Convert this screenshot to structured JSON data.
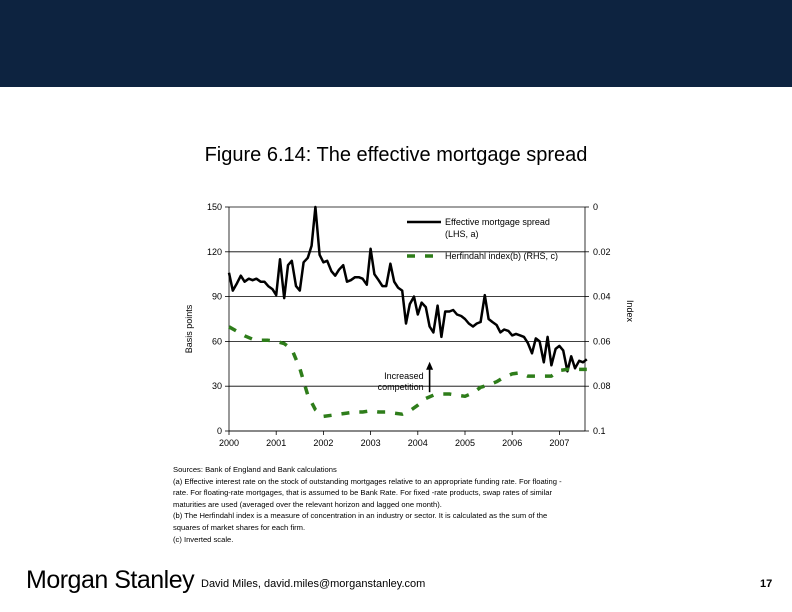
{
  "header": {
    "color": "#0d2340"
  },
  "figure_title": "Figure 6.14: The effective mortgage spread",
  "chart_data": {
    "type": "line",
    "xlabel": "",
    "ylabel": "Basis points",
    "y2label": "Index",
    "ylim": [
      0,
      150
    ],
    "y2lim": [
      0.1,
      0
    ],
    "y_ticks": [
      "0",
      "30",
      "60",
      "90",
      "120",
      "150"
    ],
    "y2_ticks": [
      "0.1",
      "0.08",
      "0.06",
      "0.04",
      "0.02",
      "0"
    ],
    "x_ticks": [
      "2000",
      "2001",
      "2002",
      "2003",
      "2004",
      "2005",
      "2006",
      "2007"
    ],
    "xlim": [
      2000,
      2007.75
    ],
    "grid": true,
    "legend_position": "top-right",
    "series": [
      {
        "name": "Effective mortgage spread (LHS, a)",
        "axis": "left",
        "style": "solid",
        "color": "#000000",
        "x": [
          2000.0,
          2000.08,
          2000.17,
          2000.25,
          2000.33,
          2000.42,
          2000.5,
          2000.58,
          2000.67,
          2000.75,
          2000.83,
          2000.92,
          2001.0,
          2001.08,
          2001.17,
          2001.25,
          2001.33,
          2001.42,
          2001.5,
          2001.58,
          2001.67,
          2001.75,
          2001.83,
          2001.92,
          2002.0,
          2002.08,
          2002.17,
          2002.25,
          2002.33,
          2002.42,
          2002.5,
          2002.58,
          2002.67,
          2002.75,
          2002.83,
          2002.92,
          2003.0,
          2003.08,
          2003.17,
          2003.25,
          2003.33,
          2003.42,
          2003.5,
          2003.58,
          2003.67,
          2003.75,
          2003.83,
          2003.92,
          2004.0,
          2004.08,
          2004.17,
          2004.25,
          2004.33,
          2004.42,
          2004.5,
          2004.58,
          2004.67,
          2004.75,
          2004.83,
          2004.92,
          2005.0,
          2005.08,
          2005.17,
          2005.25,
          2005.33,
          2005.42,
          2005.5,
          2005.58,
          2005.67,
          2005.75,
          2005.83,
          2005.92,
          2006.0,
          2006.08,
          2006.17,
          2006.25,
          2006.33,
          2006.42,
          2006.5,
          2006.58,
          2006.67,
          2006.75,
          2006.83,
          2006.92,
          2007.0,
          2007.08,
          2007.17,
          2007.25,
          2007.33,
          2007.42,
          2007.5,
          2007.58
        ],
        "values": [
          106,
          94,
          99,
          104,
          100,
          102,
          101,
          102,
          100,
          100,
          97,
          95,
          91,
          115,
          89,
          111,
          114,
          97,
          94,
          113,
          116,
          124,
          150,
          118,
          113,
          114,
          107,
          104,
          108,
          111,
          100,
          101,
          103,
          103,
          102,
          98,
          122,
          105,
          101,
          97,
          97,
          112,
          100,
          96,
          94,
          72,
          85,
          90,
          78,
          86,
          83,
          70,
          66,
          84,
          63,
          80,
          80,
          81,
          78,
          77,
          75,
          72,
          70,
          72,
          73,
          91,
          75,
          73,
          71,
          66,
          68,
          67,
          64,
          65,
          64,
          63,
          59,
          52,
          62,
          60,
          46,
          63,
          44,
          55,
          57,
          54,
          40,
          50,
          42,
          47,
          46,
          48
        ]
      },
      {
        "name": "Herfindahl index(b) (RHS, c)",
        "axis": "right",
        "style": "dashed",
        "color": "#2e7d1a",
        "x": [
          2000.0,
          2000.17,
          2000.33,
          2000.5,
          2000.67,
          2000.83,
          2001.0,
          2001.17,
          2001.33,
          2001.5,
          2001.67,
          2001.83,
          2002.0,
          2002.17,
          2002.33,
          2002.5,
          2002.67,
          2002.83,
          2003.0,
          2003.17,
          2003.33,
          2003.5,
          2003.67,
          2003.83,
          2004.0,
          2004.17,
          2004.33,
          2004.5,
          2004.67,
          2004.83,
          2005.0,
          2005.17,
          2005.33,
          2005.5,
          2005.67,
          2005.83,
          2006.0,
          2006.17,
          2006.33,
          2006.5,
          2006.67,
          2006.83,
          2007.0,
          2007.17,
          2007.33,
          2007.5,
          2007.58
        ],
        "values": [
          0.0535,
          0.0555,
          0.0575,
          0.059,
          0.0595,
          0.0595,
          0.06,
          0.061,
          0.0635,
          0.072,
          0.084,
          0.0905,
          0.0935,
          0.093,
          0.0925,
          0.092,
          0.0915,
          0.0915,
          0.091,
          0.0915,
          0.0915,
          0.092,
          0.0925,
          0.091,
          0.0885,
          0.0855,
          0.084,
          0.0835,
          0.0835,
          0.084,
          0.0845,
          0.083,
          0.0805,
          0.0795,
          0.078,
          0.076,
          0.0745,
          0.074,
          0.0755,
          0.0755,
          0.0755,
          0.0755,
          0.073,
          0.0725,
          0.0725,
          0.0725,
          0.0725
        ]
      }
    ],
    "annotation": {
      "text_lines": [
        "Increased",
        "competition"
      ],
      "x": 2004.25,
      "y_left": 30,
      "arrow_to_y": 45
    }
  },
  "sources": [
    "Sources: Bank of England and Bank calculations",
    "(a) Effective interest rate on the stock of outstanding mortgages relative to an appropriate funding rate. For floating -",
    "rate. For floating-rate mortgages, that is assumed to be Bank Rate. For fixed -rate products, swap rates of similar",
    "maturities are used (averaged over the relevant horizon and lagged one month).",
    "(b) The Herfindahl index is a measure of concentration in an industry or sector. It is calculated as the sum   of the",
    "squares of market shares for each firm.",
    "(c) Inverted scale."
  ],
  "footer": {
    "brand": "Morgan Stanley",
    "author": "David Miles, david.miles@morganstanley.com",
    "page": "17"
  }
}
